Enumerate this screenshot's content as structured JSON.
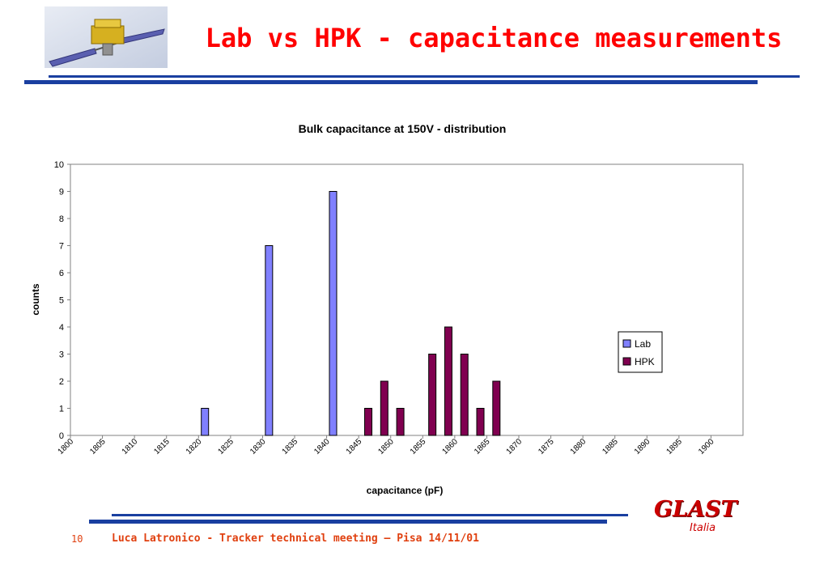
{
  "slide": {
    "title": "Lab vs HPK - capacitance measurements",
    "page_number": "10",
    "footer": "Luca Latronico - Tracker technical meeting – Pisa 14/11/01",
    "brand": "GLAST",
    "brand_sub": "Italia"
  },
  "colors": {
    "title": "#ff0000",
    "rule": "#1a3fa0",
    "lab": "#8080ff",
    "hpk": "#800050",
    "footer": "#e04010",
    "brand": "#cc0000"
  },
  "chart_data": {
    "type": "bar",
    "title": "Bulk capacitance at 150V - distribution",
    "xlabel": "capacitance (pF)",
    "ylabel": "counts",
    "ylim": [
      0,
      10
    ],
    "yticks": [
      0,
      1,
      2,
      3,
      4,
      5,
      6,
      7,
      8,
      9,
      10
    ],
    "xlim": [
      1800,
      1905
    ],
    "xticks": [
      1800,
      1805,
      1810,
      1815,
      1820,
      1825,
      1830,
      1835,
      1840,
      1845,
      1850,
      1855,
      1860,
      1865,
      1870,
      1875,
      1880,
      1885,
      1890,
      1895,
      1900
    ],
    "legend_position": "right",
    "grid": false,
    "series": [
      {
        "name": "Lab",
        "x": [
          1821,
          1831,
          1841
        ],
        "values": [
          1,
          7,
          9
        ]
      },
      {
        "name": "HPK",
        "x": [
          1846.5,
          1849,
          1851.5,
          1856.5,
          1859,
          1861.5,
          1864,
          1866.5
        ],
        "values": [
          1,
          2,
          1,
          3,
          4,
          3,
          1,
          2
        ]
      }
    ]
  }
}
